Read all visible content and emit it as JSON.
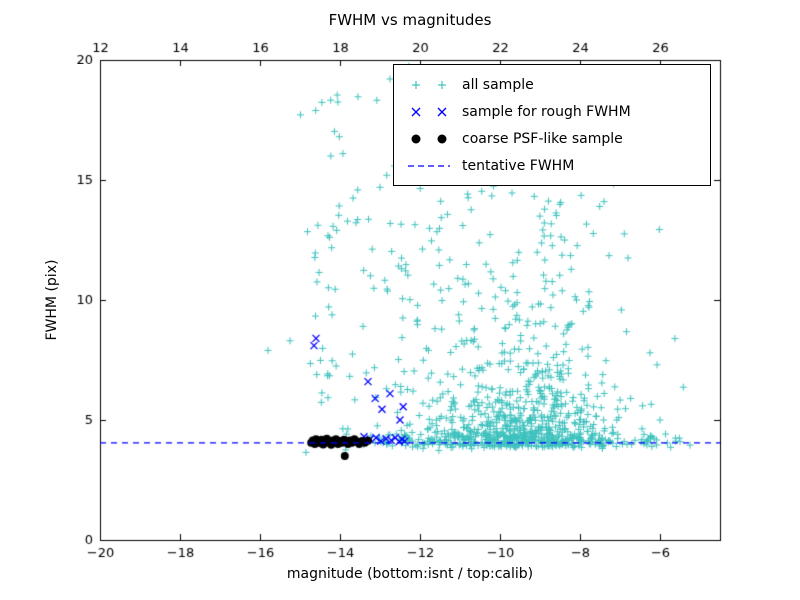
{
  "chart_data": {
    "type": "scatter",
    "title": "FWHM vs magnitudes",
    "xlabel": "magnitude (bottom:isnt / top:calib)",
    "ylabel": "FWHM (pix)",
    "xlim": [
      -20,
      -4.5
    ],
    "ylim": [
      0,
      20
    ],
    "x_tick_values": [
      -20,
      -18,
      -16,
      -14,
      -12,
      -10,
      -8,
      -6
    ],
    "x_tick_labels_bottom": [
      "−20",
      "−18",
      "−16",
      "−14",
      "−12",
      "−10",
      "−8",
      "−6"
    ],
    "x_tick_labels_top": [
      "12",
      "14",
      "16",
      "18",
      "20",
      "22",
      "24",
      "26"
    ],
    "top_axis_offset": 32,
    "y_tick_values": [
      0,
      5,
      10,
      15,
      20
    ],
    "y_tick_labels": [
      "0",
      "5",
      "10",
      "15",
      "20"
    ],
    "grid": false,
    "legend_position": "upper right",
    "tentative_fwhm": 4.05,
    "series": [
      {
        "name": "all sample",
        "marker": "plus",
        "color": "#3fc2be",
        "seed": 20240613,
        "clusters": [
          {
            "count": 620,
            "x": {
              "dist": "normal",
              "mean": -9.4,
              "sd": 1.2,
              "min": -13.2,
              "max": -5.2
            },
            "y": {
              "dist": "exp",
              "base": 3.85,
              "scale": 1.5,
              "max": 12.5
            }
          },
          {
            "count": 240,
            "x": {
              "dist": "normal",
              "mean": -9.5,
              "sd": 2.0,
              "min": -13.6,
              "max": -5.0
            },
            "y": {
              "dist": "normal",
              "mean": 4.15,
              "sd": 0.15,
              "min": 3.7,
              "max": 4.7
            }
          },
          {
            "count": 55,
            "x": {
              "dist": "normal",
              "mean": -14.1,
              "sd": 0.4,
              "min": -15.05,
              "max": -13.3
            },
            "y": {
              "dist": "uniform",
              "min": 3.6,
              "max": 18.7
            }
          },
          {
            "count": 85,
            "x": {
              "dist": "normal",
              "mean": -12.3,
              "sd": 0.6,
              "min": -13.5,
              "max": -11.0
            },
            "y": {
              "dist": "uniform",
              "min": 3.8,
              "max": 19.8
            }
          },
          {
            "count": 120,
            "x": {
              "dist": "normal",
              "mean": -9.3,
              "sd": 1.4,
              "min": -11.8,
              "max": -5.3
            },
            "y": {
              "dist": "uniform",
              "min": 7.0,
              "max": 16.0
            }
          }
        ],
        "points": [
          [
            -15.8,
            7.9
          ],
          [
            -15.25,
            8.3
          ],
          [
            -14.85,
            3.65
          ],
          [
            -7.4,
            14.1
          ],
          [
            -6.8,
            11.75
          ],
          [
            -6.25,
            7.8
          ],
          [
            -6.0,
            5.0
          ],
          [
            -6.4,
            4.4
          ],
          [
            -5.5,
            4.1
          ],
          [
            -5.25,
            3.95
          ]
        ]
      },
      {
        "name": "sample for rough FWHM",
        "marker": "x",
        "color": "#0000ff",
        "points": [
          [
            -14.65,
            8.1
          ],
          [
            -14.6,
            8.4
          ],
          [
            -13.3,
            6.6
          ],
          [
            -13.12,
            5.9
          ],
          [
            -12.95,
            5.45
          ],
          [
            -12.75,
            6.1
          ],
          [
            -12.5,
            5.0
          ],
          [
            -12.42,
            5.55
          ],
          [
            -13.4,
            4.3
          ],
          [
            -13.25,
            4.2
          ],
          [
            -13.1,
            4.26
          ],
          [
            -12.98,
            4.12
          ],
          [
            -12.85,
            4.22
          ],
          [
            -12.72,
            4.15
          ],
          [
            -12.62,
            4.26
          ],
          [
            -12.52,
            4.1
          ],
          [
            -12.45,
            4.2
          ],
          [
            -12.38,
            4.12
          ]
        ]
      },
      {
        "name": "coarse PSF-like sample",
        "marker": "dot",
        "color": "#000000",
        "points": [
          [
            -14.72,
            4.05
          ],
          [
            -14.68,
            4.15
          ],
          [
            -14.63,
            4.0
          ],
          [
            -14.6,
            4.2
          ],
          [
            -14.55,
            4.1
          ],
          [
            -14.5,
            4.04
          ],
          [
            -14.46,
            4.18
          ],
          [
            -14.42,
            3.98
          ],
          [
            -14.38,
            4.12
          ],
          [
            -14.33,
            4.22
          ],
          [
            -14.3,
            4.06
          ],
          [
            -14.26,
            4.1
          ],
          [
            -14.22,
            3.97
          ],
          [
            -14.18,
            4.15
          ],
          [
            -14.14,
            4.08
          ],
          [
            -14.1,
            4.2
          ],
          [
            -14.05,
            4.0
          ],
          [
            -14.0,
            4.12
          ],
          [
            -13.95,
            4.05
          ],
          [
            -13.9,
            4.18
          ],
          [
            -13.88,
            3.5
          ],
          [
            -13.85,
            4.1
          ],
          [
            -13.8,
            4.0
          ],
          [
            -13.75,
            4.15
          ],
          [
            -13.7,
            4.05
          ],
          [
            -13.64,
            4.2
          ],
          [
            -13.58,
            4.1
          ],
          [
            -13.52,
            4.0
          ],
          [
            -13.45,
            4.12
          ],
          [
            -13.38,
            4.05
          ],
          [
            -13.3,
            4.14
          ]
        ]
      },
      {
        "name": "tentative FWHM",
        "marker": "dashed-line",
        "color": "#0000ff",
        "y": 4.05
      }
    ]
  },
  "legend": {
    "items": [
      {
        "label": "all sample"
      },
      {
        "label": "sample for rough FWHM"
      },
      {
        "label": "coarse PSF-like sample"
      },
      {
        "label": "tentative FWHM"
      }
    ]
  }
}
